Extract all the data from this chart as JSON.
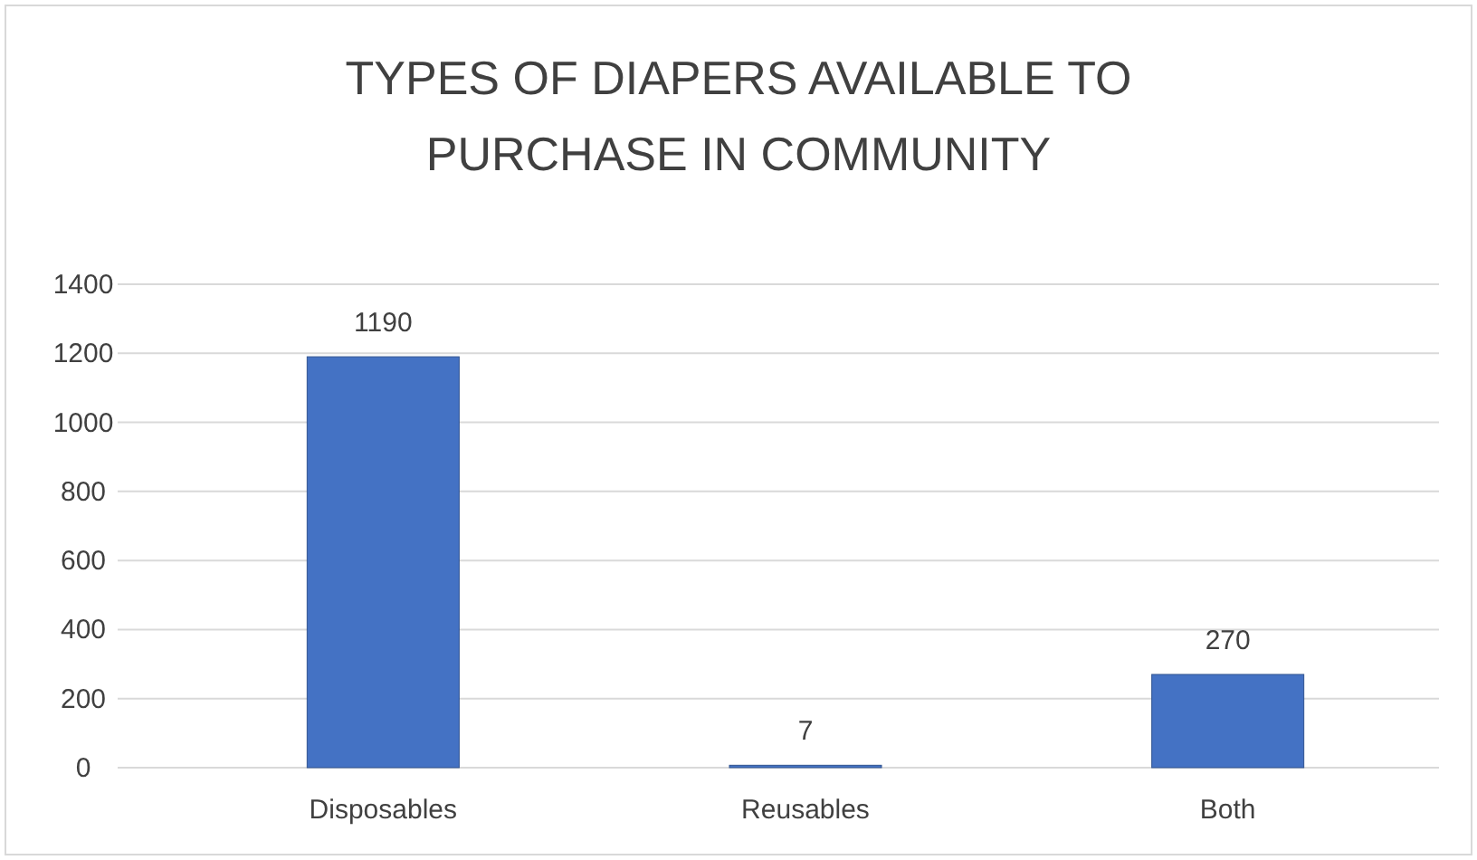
{
  "chart_data": {
    "type": "bar",
    "title": "TYPES OF DIAPERS AVAILABLE TO PURCHASE IN COMMUNITY",
    "categories": [
      "Disposables",
      "Reusables",
      "Both"
    ],
    "values": [
      1190,
      7,
      270
    ],
    "color": "#4472c4",
    "ylim": [
      0,
      1400
    ],
    "yticks": [
      0,
      200,
      400,
      600,
      800,
      1000,
      1200,
      1400
    ],
    "grid": "y",
    "data_labels": true
  }
}
